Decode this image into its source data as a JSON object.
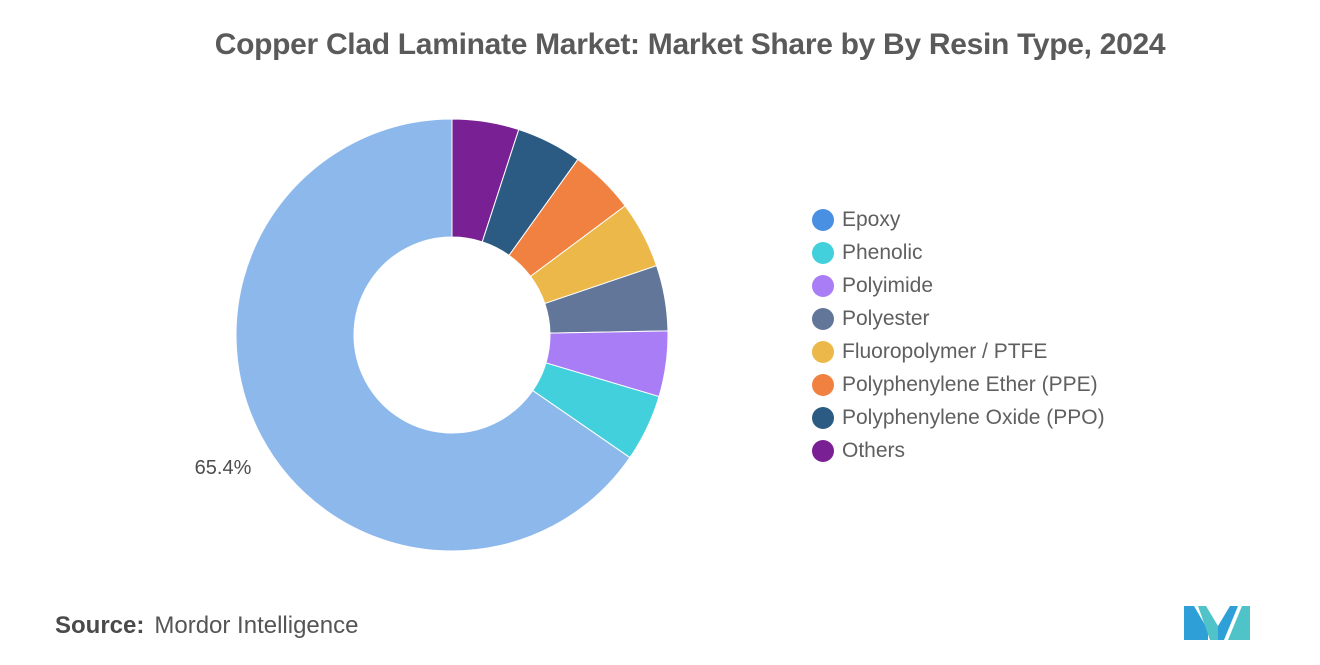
{
  "chart_data": {
    "type": "pie",
    "title": "Copper Clad Laminate Market: Market Share by By Resin Type, 2024",
    "donut": true,
    "legend_position": "right",
    "series": [
      {
        "name": "Epoxy",
        "value": 65.4,
        "color": "#8db8ec",
        "legend_color": "#4a90e2",
        "label": "65.4%"
      },
      {
        "name": "Phenolic",
        "value": 5.0,
        "color": "#41d0dc",
        "legend_color": "#41d0dc"
      },
      {
        "name": "Polyimide",
        "value": 4.9,
        "color": "#a97df5",
        "legend_color": "#a97df5"
      },
      {
        "name": "Polyester",
        "value": 4.9,
        "color": "#627699",
        "legend_color": "#627699"
      },
      {
        "name": "Fluoropolymer / PTFE",
        "value": 5.0,
        "color": "#ecb84a",
        "legend_color": "#ecb84a"
      },
      {
        "name": "Polyphenylene Ether (PPE)",
        "value": 4.9,
        "color": "#f18141",
        "legend_color": "#f18141"
      },
      {
        "name": "Polyphenylene Oxide (PPO)",
        "value": 4.9,
        "color": "#2b5b82",
        "legend_color": "#2b5b82"
      },
      {
        "name": "Others",
        "value": 5.0,
        "color": "#7a2095",
        "legend_color": "#7a2095"
      }
    ]
  },
  "footer": {
    "source_label": "Source:",
    "source_value": "Mordor Intelligence"
  },
  "logo": {
    "icon": "mordor-intelligence-logo-icon",
    "colors": [
      "#2f9fd8",
      "#4fc3c8"
    ]
  }
}
